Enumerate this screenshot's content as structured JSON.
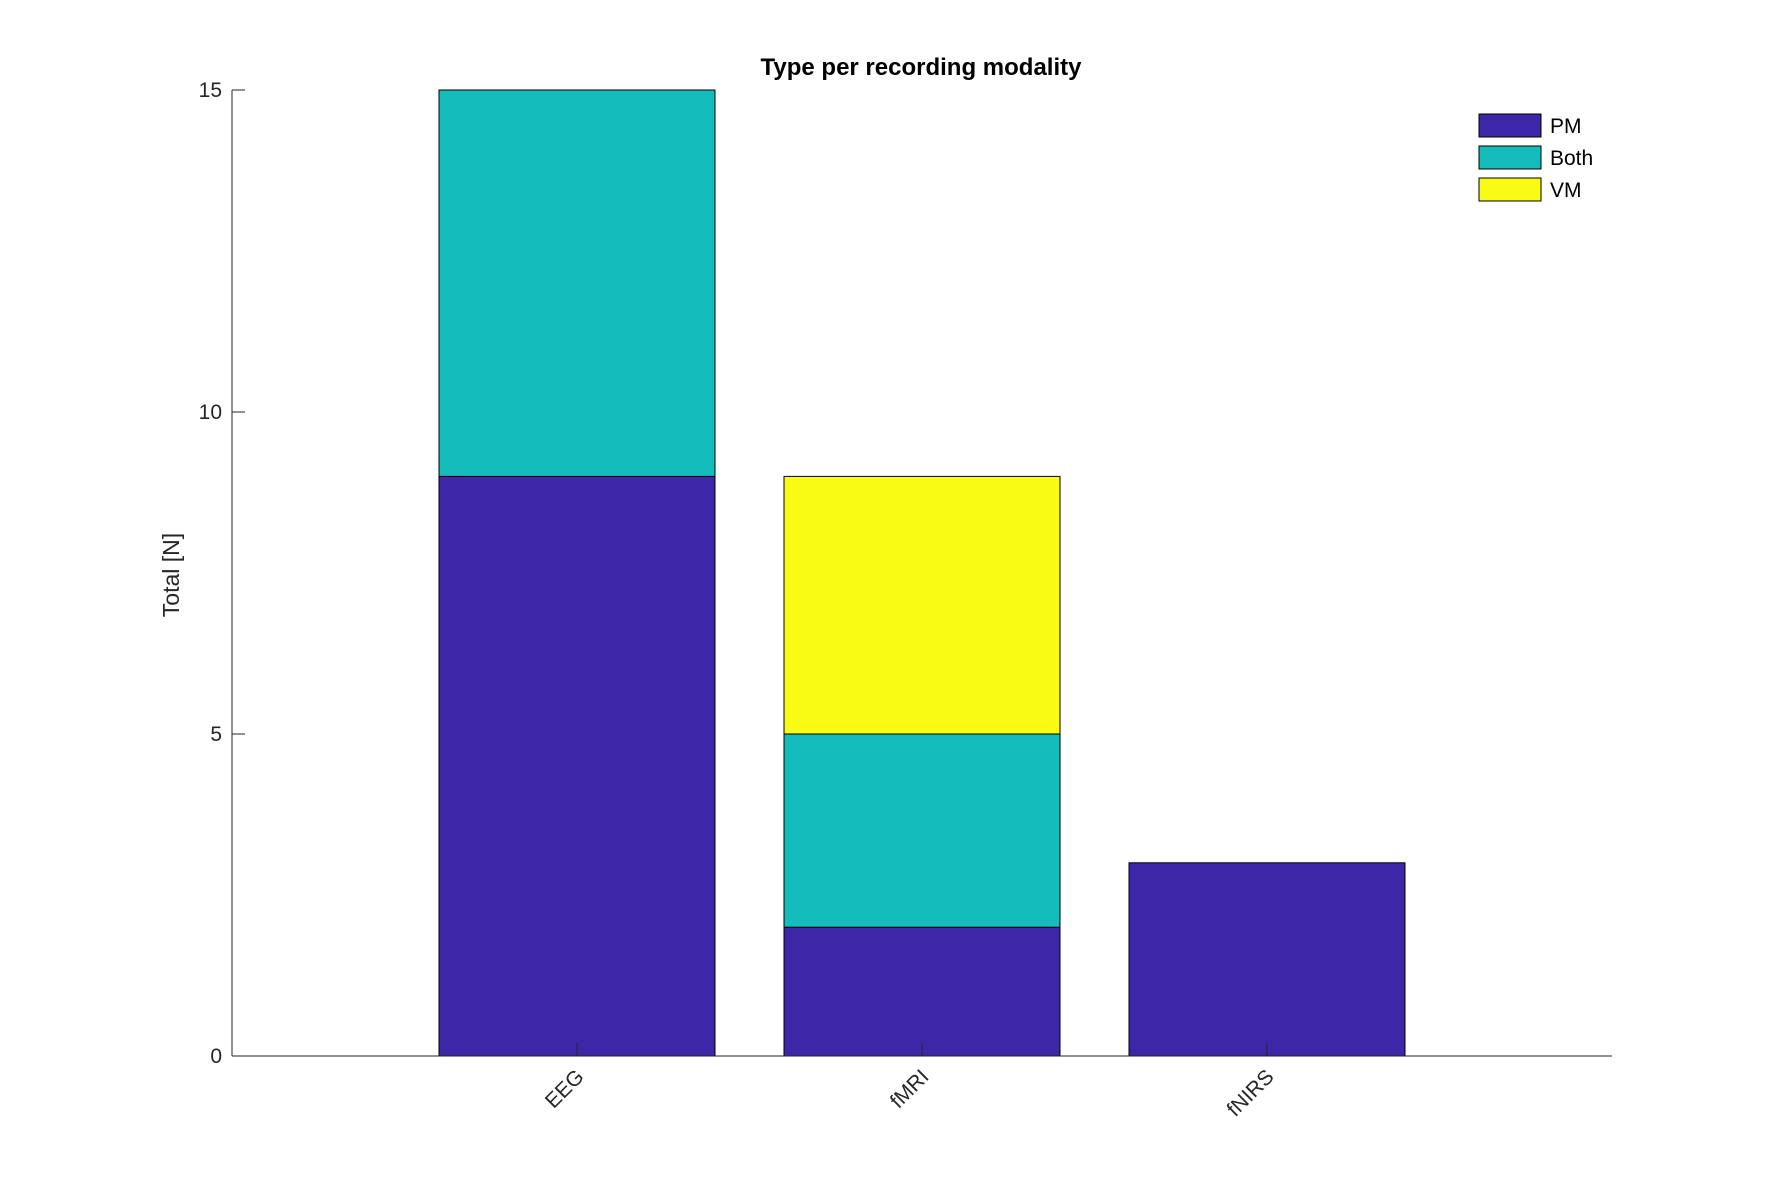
{
  "chart_data": {
    "type": "bar",
    "stacked": true,
    "title": "Type per recording modality",
    "xlabel": "",
    "ylabel": "Total [N]",
    "categories": [
      "EEG",
      "fMRI",
      "fNIRS"
    ],
    "series": [
      {
        "name": "PM",
        "values": [
          9,
          2,
          3
        ],
        "color": "#3e26a8"
      },
      {
        "name": "Both",
        "values": [
          6,
          3,
          0
        ],
        "color": "#14bdbc"
      },
      {
        "name": "VM",
        "values": [
          0,
          4,
          0
        ],
        "color": "#f9fb15"
      }
    ],
    "ylim": [
      0,
      15
    ],
    "yticks": [
      0,
      5,
      10,
      15
    ],
    "grid": false,
    "legend_position": "top-right"
  }
}
